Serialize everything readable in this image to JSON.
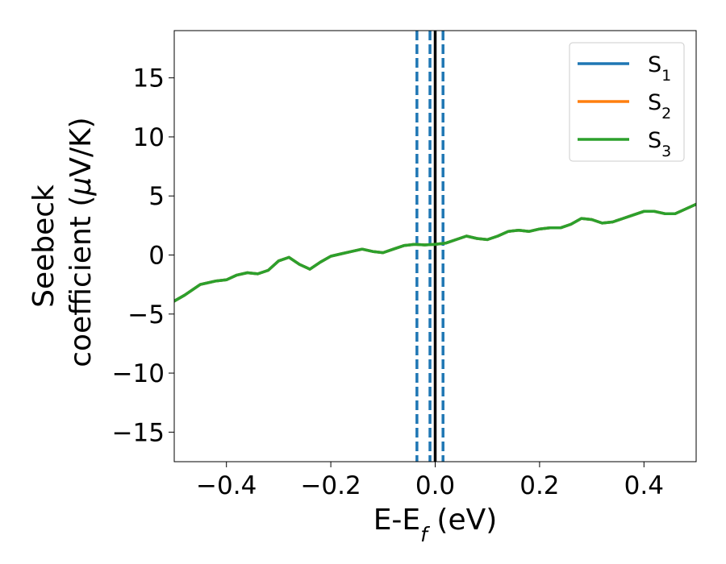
{
  "chart_data": {
    "type": "line",
    "xlabel": {
      "base": "E-E",
      "sub": "f",
      "suffix": " (eV)"
    },
    "ylabel": {
      "line1": "Seebeck",
      "line2_prefix": "coefficient  (",
      "mu": "μ",
      "line2_suffix": "V/K)"
    },
    "xlim": [
      -0.5,
      0.5
    ],
    "ylim": [
      -17.5,
      19
    ],
    "xticks": [
      -0.4,
      -0.2,
      0.0,
      0.2,
      0.4
    ],
    "xtick_labels": [
      "−0.4",
      "−0.2",
      "0.0",
      "0.2",
      "0.4"
    ],
    "yticks": [
      -15,
      -10,
      -5,
      0,
      5,
      10,
      15
    ],
    "ytick_labels": [
      "−15",
      "−10",
      "−5",
      "0",
      "5",
      "10",
      "15"
    ],
    "grid": false,
    "legend_position": "top-right",
    "vertical_lines": [
      {
        "x": -0.035,
        "style": "dashed",
        "color": "#1f77b4"
      },
      {
        "x": -0.01,
        "style": "dashed",
        "color": "#1f77b4"
      },
      {
        "x": 0.015,
        "style": "dashed",
        "color": "#1f77b4"
      },
      {
        "x": 0.0,
        "style": "solid",
        "color": "#000000"
      }
    ],
    "series": [
      {
        "name": "S",
        "sub": "1",
        "color": "#1f77b4",
        "x": [
          -0.5,
          -0.48,
          -0.45,
          -0.42,
          -0.4,
          -0.38,
          -0.36,
          -0.34,
          -0.32,
          -0.3,
          -0.28,
          -0.26,
          -0.24,
          -0.22,
          -0.2,
          -0.18,
          -0.16,
          -0.14,
          -0.12,
          -0.1,
          -0.08,
          -0.06,
          -0.04,
          -0.02,
          0.0,
          0.02,
          0.04,
          0.06,
          0.08,
          0.1,
          0.12,
          0.14,
          0.16,
          0.18,
          0.2,
          0.22,
          0.24,
          0.26,
          0.28,
          0.3,
          0.32,
          0.34,
          0.36,
          0.38,
          0.4,
          0.42,
          0.44,
          0.46,
          0.48,
          0.5
        ],
        "y": [
          -3.9,
          -3.4,
          -2.5,
          -2.2,
          -2.1,
          -1.7,
          -1.5,
          -1.6,
          -1.3,
          -0.5,
          -0.2,
          -0.8,
          -1.2,
          -0.6,
          -0.1,
          0.1,
          0.3,
          0.5,
          0.3,
          0.2,
          0.5,
          0.8,
          0.9,
          0.85,
          0.9,
          1.0,
          1.3,
          1.6,
          1.4,
          1.3,
          1.6,
          2.0,
          2.1,
          2.0,
          2.2,
          2.3,
          2.3,
          2.6,
          3.1,
          3.0,
          2.7,
          2.8,
          3.1,
          3.4,
          3.7,
          3.7,
          3.5,
          3.5,
          3.9,
          4.3
        ]
      },
      {
        "name": "S",
        "sub": "2",
        "color": "#ff7f0e",
        "x": [
          -0.5,
          -0.48,
          -0.45,
          -0.42,
          -0.4,
          -0.38,
          -0.36,
          -0.34,
          -0.32,
          -0.3,
          -0.28,
          -0.26,
          -0.24,
          -0.22,
          -0.2,
          -0.18,
          -0.16,
          -0.14,
          -0.12,
          -0.1,
          -0.08,
          -0.06,
          -0.04,
          -0.02,
          0.0,
          0.02,
          0.04,
          0.06,
          0.08,
          0.1,
          0.12,
          0.14,
          0.16,
          0.18,
          0.2,
          0.22,
          0.24,
          0.26,
          0.28,
          0.3,
          0.32,
          0.34,
          0.36,
          0.38,
          0.4,
          0.42,
          0.44,
          0.46,
          0.48,
          0.5
        ],
        "y": [
          -3.9,
          -3.4,
          -2.5,
          -2.2,
          -2.1,
          -1.7,
          -1.5,
          -1.6,
          -1.3,
          -0.5,
          -0.2,
          -0.8,
          -1.2,
          -0.6,
          -0.1,
          0.1,
          0.3,
          0.5,
          0.3,
          0.2,
          0.5,
          0.8,
          0.9,
          0.85,
          0.9,
          1.0,
          1.3,
          1.6,
          1.4,
          1.3,
          1.6,
          2.0,
          2.1,
          2.0,
          2.2,
          2.3,
          2.3,
          2.6,
          3.1,
          3.0,
          2.7,
          2.8,
          3.1,
          3.4,
          3.7,
          3.7,
          3.5,
          3.5,
          3.9,
          4.3
        ]
      },
      {
        "name": "S",
        "sub": "3",
        "color": "#2ca02c",
        "x": [
          -0.5,
          -0.48,
          -0.45,
          -0.42,
          -0.4,
          -0.38,
          -0.36,
          -0.34,
          -0.32,
          -0.3,
          -0.28,
          -0.26,
          -0.24,
          -0.22,
          -0.2,
          -0.18,
          -0.16,
          -0.14,
          -0.12,
          -0.1,
          -0.08,
          -0.06,
          -0.04,
          -0.02,
          0.0,
          0.02,
          0.04,
          0.06,
          0.08,
          0.1,
          0.12,
          0.14,
          0.16,
          0.18,
          0.2,
          0.22,
          0.24,
          0.26,
          0.28,
          0.3,
          0.32,
          0.34,
          0.36,
          0.38,
          0.4,
          0.42,
          0.44,
          0.46,
          0.48,
          0.5
        ],
        "y": [
          -3.9,
          -3.4,
          -2.5,
          -2.2,
          -2.1,
          -1.7,
          -1.5,
          -1.6,
          -1.3,
          -0.5,
          -0.2,
          -0.8,
          -1.2,
          -0.6,
          -0.1,
          0.1,
          0.3,
          0.5,
          0.3,
          0.2,
          0.5,
          0.8,
          0.9,
          0.85,
          0.9,
          1.0,
          1.3,
          1.6,
          1.4,
          1.3,
          1.6,
          2.0,
          2.1,
          2.0,
          2.2,
          2.3,
          2.3,
          2.6,
          3.1,
          3.0,
          2.7,
          2.8,
          3.1,
          3.4,
          3.7,
          3.7,
          3.5,
          3.5,
          3.9,
          4.3
        ]
      }
    ]
  }
}
